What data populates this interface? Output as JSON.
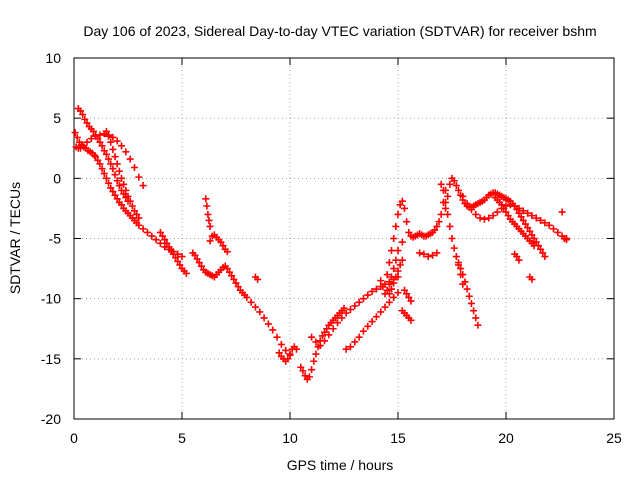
{
  "chart_data": {
    "type": "scatter",
    "title": "Day 106 of 2023, Sidereal Day-to-day VTEC variation (SDTVAR) for receiver bshm",
    "xlabel": "GPS time / hours",
    "ylabel": "SDTVAR / TECUs",
    "xlim": [
      0,
      25
    ],
    "ylim": [
      -20,
      10
    ],
    "xticks": [
      0,
      5,
      10,
      15,
      20,
      25
    ],
    "yticks": [
      -20,
      -15,
      -10,
      -5,
      0,
      5,
      10
    ],
    "grid": true,
    "marker": "+",
    "series": [
      {
        "name": "SDTVAR",
        "color": "#ff0000",
        "x": [
          0.05,
          0.15,
          0.25,
          0.35,
          0.45,
          0.55,
          0.65,
          0.75,
          0.85,
          0.95,
          1.0,
          1.1,
          1.2,
          1.3,
          1.4,
          1.5,
          1.6,
          1.7,
          1.8,
          1.9,
          2.0,
          2.1,
          2.2,
          2.3,
          2.4,
          2.5,
          2.6,
          2.7,
          2.8,
          2.9,
          3.0,
          3.2,
          3.4,
          3.6,
          3.8,
          4.0,
          4.2,
          4.4,
          4.6,
          4.8,
          5.0,
          0.2,
          0.3,
          0.4,
          0.5,
          0.6,
          0.7,
          0.8,
          0.9,
          1.0,
          1.1,
          1.2,
          1.3,
          1.4,
          1.5,
          1.6,
          1.7,
          1.8,
          1.9,
          2.0,
          2.1,
          2.2,
          2.3,
          2.4,
          2.5,
          0.1,
          0.2,
          0.3,
          0.4,
          0.6,
          0.8,
          1.0,
          1.2,
          1.4,
          1.6,
          1.8,
          2.0,
          2.2,
          2.4,
          2.6,
          2.8,
          3.0,
          3.2,
          1.5,
          1.6,
          1.7,
          1.8,
          1.9,
          2.0,
          2.1,
          2.2,
          2.3,
          2.4,
          2.5,
          2.6,
          2.7,
          2.8,
          2.9,
          3.0,
          4.0,
          4.1,
          4.2,
          4.3,
          4.4,
          4.5,
          4.6,
          4.7,
          4.8,
          4.9,
          5.0,
          5.1,
          5.2,
          5.5,
          5.6,
          5.7,
          5.8,
          5.9,
          6.0,
          6.1,
          6.2,
          6.3,
          6.4,
          6.5,
          6.6,
          6.7,
          6.8,
          6.9,
          7.0,
          7.1,
          7.2,
          7.3,
          7.4,
          7.5,
          7.6,
          7.7,
          7.8,
          7.9,
          8.0,
          8.2,
          8.4,
          8.6,
          8.8,
          9.0,
          9.2,
          9.4,
          9.6,
          9.8,
          10.0,
          6.1,
          6.15,
          6.2,
          6.25,
          6.3,
          6.3,
          6.4,
          6.5,
          6.6,
          6.7,
          6.8,
          6.9,
          7.0,
          7.1,
          8.4,
          8.5,
          9.5,
          9.6,
          9.7,
          9.8,
          9.9,
          10.0,
          10.1,
          10.2,
          10.3,
          10.5,
          10.6,
          10.7,
          10.8,
          10.9,
          11.0,
          11.1,
          11.2,
          11.3,
          11.4,
          11.5,
          11.6,
          11.7,
          11.8,
          11.9,
          12.0,
          12.1,
          12.2,
          12.3,
          12.4,
          12.5,
          11.0,
          11.2,
          11.4,
          11.6,
          11.8,
          12.0,
          12.2,
          12.4,
          12.6,
          12.8,
          13.0,
          13.2,
          13.4,
          13.6,
          13.8,
          14.0,
          14.2,
          14.4,
          14.6,
          14.8,
          15.0,
          12.6,
          12.8,
          13.0,
          13.2,
          13.4,
          13.6,
          13.8,
          14.0,
          14.2,
          14.4,
          14.6,
          14.8,
          15.0,
          14.5,
          14.6,
          14.7,
          14.8,
          14.9,
          15.0,
          15.1,
          15.2,
          15.3,
          15.4,
          15.5,
          15.6,
          15.7,
          15.8,
          15.9,
          16.0,
          16.1,
          16.2,
          16.3,
          16.4,
          16.5,
          16.6,
          16.7,
          16.8,
          16.9,
          17.0,
          17.1,
          17.2,
          14.6,
          14.7,
          14.8,
          14.9,
          15.0,
          15.1,
          15.2,
          14.2,
          14.3,
          14.4,
          14.5,
          14.6,
          14.7,
          14.8,
          14.9,
          15.0,
          15.2,
          15.3,
          15.4,
          15.5,
          15.6,
          15.2,
          15.3,
          15.4,
          15.5,
          15.6,
          16.0,
          16.2,
          16.4,
          16.6,
          16.8,
          17.0,
          17.1,
          17.2,
          17.3,
          17.4,
          17.5,
          17.6,
          17.7,
          17.8,
          17.9,
          18.0,
          17.8,
          17.9,
          18.0,
          18.1,
          18.2,
          18.3,
          18.4,
          18.5,
          18.6,
          18.7,
          17.2,
          17.3,
          17.4,
          17.5,
          17.6,
          17.7,
          17.8,
          17.9,
          18.0,
          18.1,
          18.2,
          18.3,
          18.4,
          18.5,
          18.6,
          18.7,
          18.8,
          18.9,
          19.0,
          19.1,
          19.2,
          19.3,
          19.4,
          19.5,
          19.6,
          19.7,
          19.8,
          19.9,
          20.0,
          20.1,
          20.2,
          20.3,
          20.4,
          20.5,
          20.6,
          20.7,
          20.8,
          20.9,
          21.0,
          21.1,
          21.2,
          21.3,
          21.4,
          21.5,
          21.6,
          21.7,
          21.8,
          18.0,
          18.2,
          18.4,
          18.6,
          18.8,
          19.0,
          19.2,
          19.4,
          19.6,
          19.8,
          20.0,
          20.2,
          20.4,
          20.6,
          20.8,
          21.0,
          21.2,
          21.4,
          21.6,
          21.8,
          22.0,
          22.2,
          22.4,
          22.6,
          22.8,
          19.5,
          19.6,
          19.7,
          19.8,
          19.9,
          20.0,
          20.1,
          20.2,
          20.3,
          20.4,
          20.5,
          20.6,
          20.7,
          20.8,
          20.9,
          21.0,
          21.1,
          21.2,
          21.3,
          20.4,
          20.5,
          20.6,
          21.1,
          21.2,
          22.6,
          22.7,
          22.8
        ],
        "y": [
          3.8,
          3.4,
          3.0,
          2.8,
          2.6,
          2.5,
          2.3,
          2.2,
          2.1,
          1.9,
          1.8,
          1.5,
          1.2,
          0.8,
          0.4,
          0.0,
          -0.4,
          -0.8,
          -1.1,
          -1.4,
          -1.7,
          -2.0,
          -2.2,
          -2.5,
          -2.7,
          -2.9,
          -3.1,
          -3.3,
          -3.5,
          -3.7,
          -3.9,
          -4.2,
          -4.5,
          -4.8,
          -5.1,
          -5.4,
          -5.7,
          -5.9,
          -6.1,
          -6.3,
          -6.5,
          5.8,
          5.6,
          5.3,
          4.9,
          4.6,
          4.3,
          4.1,
          3.9,
          3.6,
          3.3,
          3.0,
          2.7,
          2.3,
          2.0,
          1.6,
          1.2,
          0.8,
          0.3,
          -0.2,
          -0.6,
          -1.0,
          -1.3,
          -1.6,
          -1.9,
          2.6,
          2.5,
          2.5,
          2.7,
          3.0,
          3.3,
          3.5,
          3.6,
          3.7,
          3.6,
          3.4,
          3.1,
          2.7,
          2.2,
          1.6,
          0.9,
          0.1,
          -0.6,
          3.9,
          3.5,
          3.0,
          2.4,
          1.8,
          1.2,
          0.6,
          0.0,
          -0.5,
          -1.0,
          -1.5,
          -1.9,
          -2.3,
          -2.7,
          -3.0,
          -3.3,
          -4.5,
          -4.8,
          -5.1,
          -5.4,
          -5.7,
          -6.0,
          -6.3,
          -6.6,
          -6.9,
          -7.2,
          -7.5,
          -7.7,
          -7.9,
          -6.2,
          -6.4,
          -6.7,
          -7.0,
          -7.3,
          -7.6,
          -7.8,
          -7.9,
          -8.0,
          -8.1,
          -8.2,
          -8.0,
          -7.8,
          -7.6,
          -7.4,
          -7.3,
          -7.5,
          -7.8,
          -8.1,
          -8.4,
          -8.7,
          -9.0,
          -9.3,
          -9.5,
          -9.7,
          -9.9,
          -10.3,
          -10.7,
          -11.1,
          -11.6,
          -12.1,
          -12.6,
          -13.2,
          -13.8,
          -14.3,
          -14.7,
          -1.7,
          -2.3,
          -3.0,
          -3.5,
          -4.0,
          -5.2,
          -4.8,
          -4.7,
          -4.9,
          -5.1,
          -5.3,
          -5.6,
          -5.9,
          -6.1,
          -8.2,
          -8.4,
          -14.5,
          -14.8,
          -15.0,
          -15.2,
          -15.0,
          -14.6,
          -14.2,
          -14.0,
          -14.2,
          -15.7,
          -16.0,
          -16.4,
          -16.7,
          -16.5,
          -15.9,
          -15.2,
          -14.6,
          -14.0,
          -13.5,
          -13.1,
          -12.8,
          -12.5,
          -12.2,
          -12.0,
          -11.8,
          -11.6,
          -11.4,
          -11.2,
          -11.0,
          -10.8,
          -13.2,
          -13.6,
          -13.9,
          -13.5,
          -13.0,
          -12.5,
          -12.0,
          -11.6,
          -11.2,
          -10.9,
          -10.6,
          -10.3,
          -10.0,
          -9.7,
          -9.4,
          -9.2,
          -9.0,
          -8.8,
          -8.6,
          -8.4,
          -8.2,
          -14.2,
          -14.0,
          -13.6,
          -13.2,
          -12.7,
          -12.3,
          -11.9,
          -11.5,
          -11.1,
          -10.7,
          -10.3,
          -9.9,
          -9.5,
          -8.0,
          -7.0,
          -6.0,
          -5.0,
          -4.0,
          -3.0,
          -2.2,
          -1.9,
          -2.5,
          -3.6,
          -4.5,
          -4.8,
          -4.9,
          -4.8,
          -4.7,
          -4.6,
          -4.7,
          -4.8,
          -4.8,
          -4.7,
          -4.6,
          -4.5,
          -4.3,
          -4.0,
          -3.6,
          -3.0,
          -2.0,
          -1.0,
          -9.6,
          -9.2,
          -8.7,
          -8.2,
          -7.7,
          -7.2,
          -6.8,
          -8.5,
          -9.0,
          -9.6,
          -9.3,
          -8.8,
          -8.2,
          -7.5,
          -6.8,
          -6.0,
          -5.3,
          -9.3,
          -9.6,
          -9.9,
          -10.2,
          -11.0,
          -11.2,
          -11.4,
          -11.6,
          -11.8,
          -6.2,
          -6.3,
          -6.5,
          -6.4,
          -6.2,
          -0.5,
          -1.0,
          -2.0,
          -3.0,
          -4.0,
          -5.0,
          -5.8,
          -6.5,
          -7.2,
          -8.0,
          -8.8,
          -7.0,
          -7.5,
          -8.0,
          -8.6,
          -9.2,
          -9.8,
          -10.4,
          -11.0,
          -11.6,
          -12.2,
          -2.5,
          -1.5,
          -0.5,
          0.0,
          -0.2,
          -0.6,
          -1.0,
          -1.4,
          -1.8,
          -2.1,
          -2.3,
          -2.4,
          -2.4,
          -2.3,
          -2.2,
          -2.1,
          -2.0,
          -1.9,
          -1.8,
          -1.6,
          -1.4,
          -1.3,
          -1.2,
          -1.2,
          -1.3,
          -1.4,
          -1.5,
          -1.6,
          -1.7,
          -1.8,
          -1.9,
          -2.1,
          -2.3,
          -2.6,
          -2.9,
          -3.2,
          -3.5,
          -3.8,
          -4.1,
          -4.4,
          -4.7,
          -5.0,
          -5.3,
          -5.6,
          -5.9,
          -6.2,
          -6.5,
          -1.5,
          -2.1,
          -2.6,
          -3.0,
          -3.3,
          -3.4,
          -3.3,
          -3.1,
          -2.8,
          -2.5,
          -2.3,
          -2.2,
          -2.3,
          -2.5,
          -2.7,
          -2.9,
          -3.1,
          -3.3,
          -3.5,
          -3.7,
          -3.9,
          -4.2,
          -4.5,
          -4.8,
          -5.1,
          -1.6,
          -1.8,
          -2.0,
          -2.2,
          -2.5,
          -2.8,
          -3.1,
          -3.4,
          -3.6,
          -3.8,
          -4.0,
          -4.2,
          -4.4,
          -4.6,
          -4.8,
          -5.0,
          -5.2,
          -5.4,
          -5.6,
          -6.3,
          -6.5,
          -6.8,
          -8.2,
          -8.4,
          -2.8,
          -5.0,
          -5.0
        ]
      }
    ]
  }
}
